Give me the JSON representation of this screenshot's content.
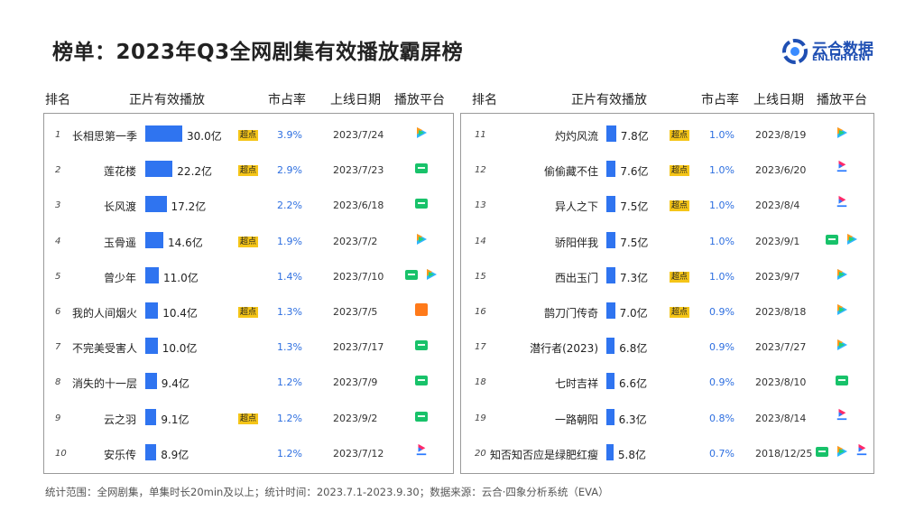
{
  "title": "榜单：2023年Q3全网剧集有效播放霸屏榜",
  "logo": {
    "cn": "云合数据",
    "en": "ENLIGHTENT"
  },
  "columns": [
    "排名",
    "正片有效播放",
    "市占率",
    "上线日期",
    "播放平台"
  ],
  "footer": "统计范围：全网剧集，单集时长20min及以上；统计时间：2023.7.1-2023.9.30；数据来源：云合·四象分析系统（EVA）",
  "tag_label": "超点",
  "colors": {
    "bar": "#2f74f0",
    "share_text": "#2e6fe0",
    "tag": "#f5c518",
    "iqiyi": "#18c26a",
    "tencent": [
      "#ff9a1a",
      "#2fb5ff",
      "#25d07a"
    ],
    "youku": [
      "#ff2a6a",
      "#2a7bff"
    ],
    "mango": "#ff7a1a"
  },
  "chart_data": {
    "type": "table",
    "title": "榜单：2023年Q3全网剧集有效播放霸屏榜",
    "value_unit": "亿",
    "rows": [
      {
        "rank": "1",
        "name": "长相思第一季",
        "value": 30.0,
        "value_label": "30.0亿",
        "tag": true,
        "share": "3.9%",
        "date": "2023/7/24",
        "platforms": [
          "tencent-icon"
        ]
      },
      {
        "rank": "2",
        "name": "莲花楼",
        "value": 22.2,
        "value_label": "22.2亿",
        "tag": true,
        "share": "2.9%",
        "date": "2023/7/23",
        "platforms": [
          "iqiyi-icon"
        ]
      },
      {
        "rank": "3",
        "name": "长风渡",
        "value": 17.2,
        "value_label": "17.2亿",
        "tag": false,
        "share": "2.2%",
        "date": "2023/6/18",
        "platforms": [
          "iqiyi-icon"
        ]
      },
      {
        "rank": "4",
        "name": "玉骨遥",
        "value": 14.6,
        "value_label": "14.6亿",
        "tag": true,
        "share": "1.9%",
        "date": "2023/7/2",
        "platforms": [
          "tencent-icon"
        ]
      },
      {
        "rank": "5",
        "name": "曾少年",
        "value": 11.0,
        "value_label": "11.0亿",
        "tag": false,
        "share": "1.4%",
        "date": "2023/7/10",
        "platforms": [
          "iqiyi-icon",
          "tencent-icon"
        ]
      },
      {
        "rank": "6",
        "name": "我的人间烟火",
        "value": 10.4,
        "value_label": "10.4亿",
        "tag": true,
        "share": "1.3%",
        "date": "2023/7/5",
        "platforms": [
          "mango-icon"
        ]
      },
      {
        "rank": "7",
        "name": "不完美受害人",
        "value": 10.0,
        "value_label": "10.0亿",
        "tag": false,
        "share": "1.3%",
        "date": "2023/7/17",
        "platforms": [
          "iqiyi-icon"
        ]
      },
      {
        "rank": "8",
        "name": "消失的十一层",
        "value": 9.4,
        "value_label": "9.4亿",
        "tag": false,
        "share": "1.2%",
        "date": "2023/7/9",
        "platforms": [
          "iqiyi-icon"
        ]
      },
      {
        "rank": "9",
        "name": "云之羽",
        "value": 9.1,
        "value_label": "9.1亿",
        "tag": true,
        "share": "1.2%",
        "date": "2023/9/2",
        "platforms": [
          "iqiyi-icon"
        ]
      },
      {
        "rank": "10",
        "name": "安乐传",
        "value": 8.9,
        "value_label": "8.9亿",
        "tag": false,
        "share": "1.2%",
        "date": "2023/7/12",
        "platforms": [
          "youku-icon"
        ]
      },
      {
        "rank": "11",
        "name": "灼灼风流",
        "value": 7.8,
        "value_label": "7.8亿",
        "tag": true,
        "share": "1.0%",
        "date": "2023/8/19",
        "platforms": [
          "tencent-icon"
        ]
      },
      {
        "rank": "12",
        "name": "偷偷藏不住",
        "value": 7.6,
        "value_label": "7.6亿",
        "tag": true,
        "share": "1.0%",
        "date": "2023/6/20",
        "platforms": [
          "youku-icon"
        ]
      },
      {
        "rank": "13",
        "name": "异人之下",
        "value": 7.5,
        "value_label": "7.5亿",
        "tag": true,
        "share": "1.0%",
        "date": "2023/8/4",
        "platforms": [
          "youku-icon"
        ]
      },
      {
        "rank": "14",
        "name": "骄阳伴我",
        "value": 7.5,
        "value_label": "7.5亿",
        "tag": false,
        "share": "1.0%",
        "date": "2023/9/1",
        "platforms": [
          "iqiyi-icon",
          "tencent-icon"
        ]
      },
      {
        "rank": "15",
        "name": "西出玉门",
        "value": 7.3,
        "value_label": "7.3亿",
        "tag": true,
        "share": "1.0%",
        "date": "2023/9/7",
        "platforms": [
          "tencent-icon"
        ]
      },
      {
        "rank": "16",
        "name": "鹊刀门传奇",
        "value": 7.0,
        "value_label": "7.0亿",
        "tag": true,
        "share": "0.9%",
        "date": "2023/8/18",
        "platforms": [
          "tencent-icon"
        ]
      },
      {
        "rank": "17",
        "name": "潜行者(2023)",
        "value": 6.8,
        "value_label": "6.8亿",
        "tag": false,
        "share": "0.9%",
        "date": "2023/7/27",
        "platforms": [
          "tencent-icon"
        ]
      },
      {
        "rank": "18",
        "name": "七时吉祥",
        "value": 6.6,
        "value_label": "6.6亿",
        "tag": false,
        "share": "0.9%",
        "date": "2023/8/10",
        "platforms": [
          "iqiyi-icon"
        ]
      },
      {
        "rank": "19",
        "name": "一路朝阳",
        "value": 6.3,
        "value_label": "6.3亿",
        "tag": false,
        "share": "0.8%",
        "date": "2023/8/14",
        "platforms": [
          "youku-icon"
        ]
      },
      {
        "rank": "20",
        "name": "知否知否应是绿肥红瘦",
        "value": 5.8,
        "value_label": "5.8亿",
        "tag": false,
        "share": "0.7%",
        "date": "2018/12/25",
        "platforms": [
          "iqiyi-icon",
          "tencent-icon",
          "youku-icon"
        ]
      }
    ]
  }
}
